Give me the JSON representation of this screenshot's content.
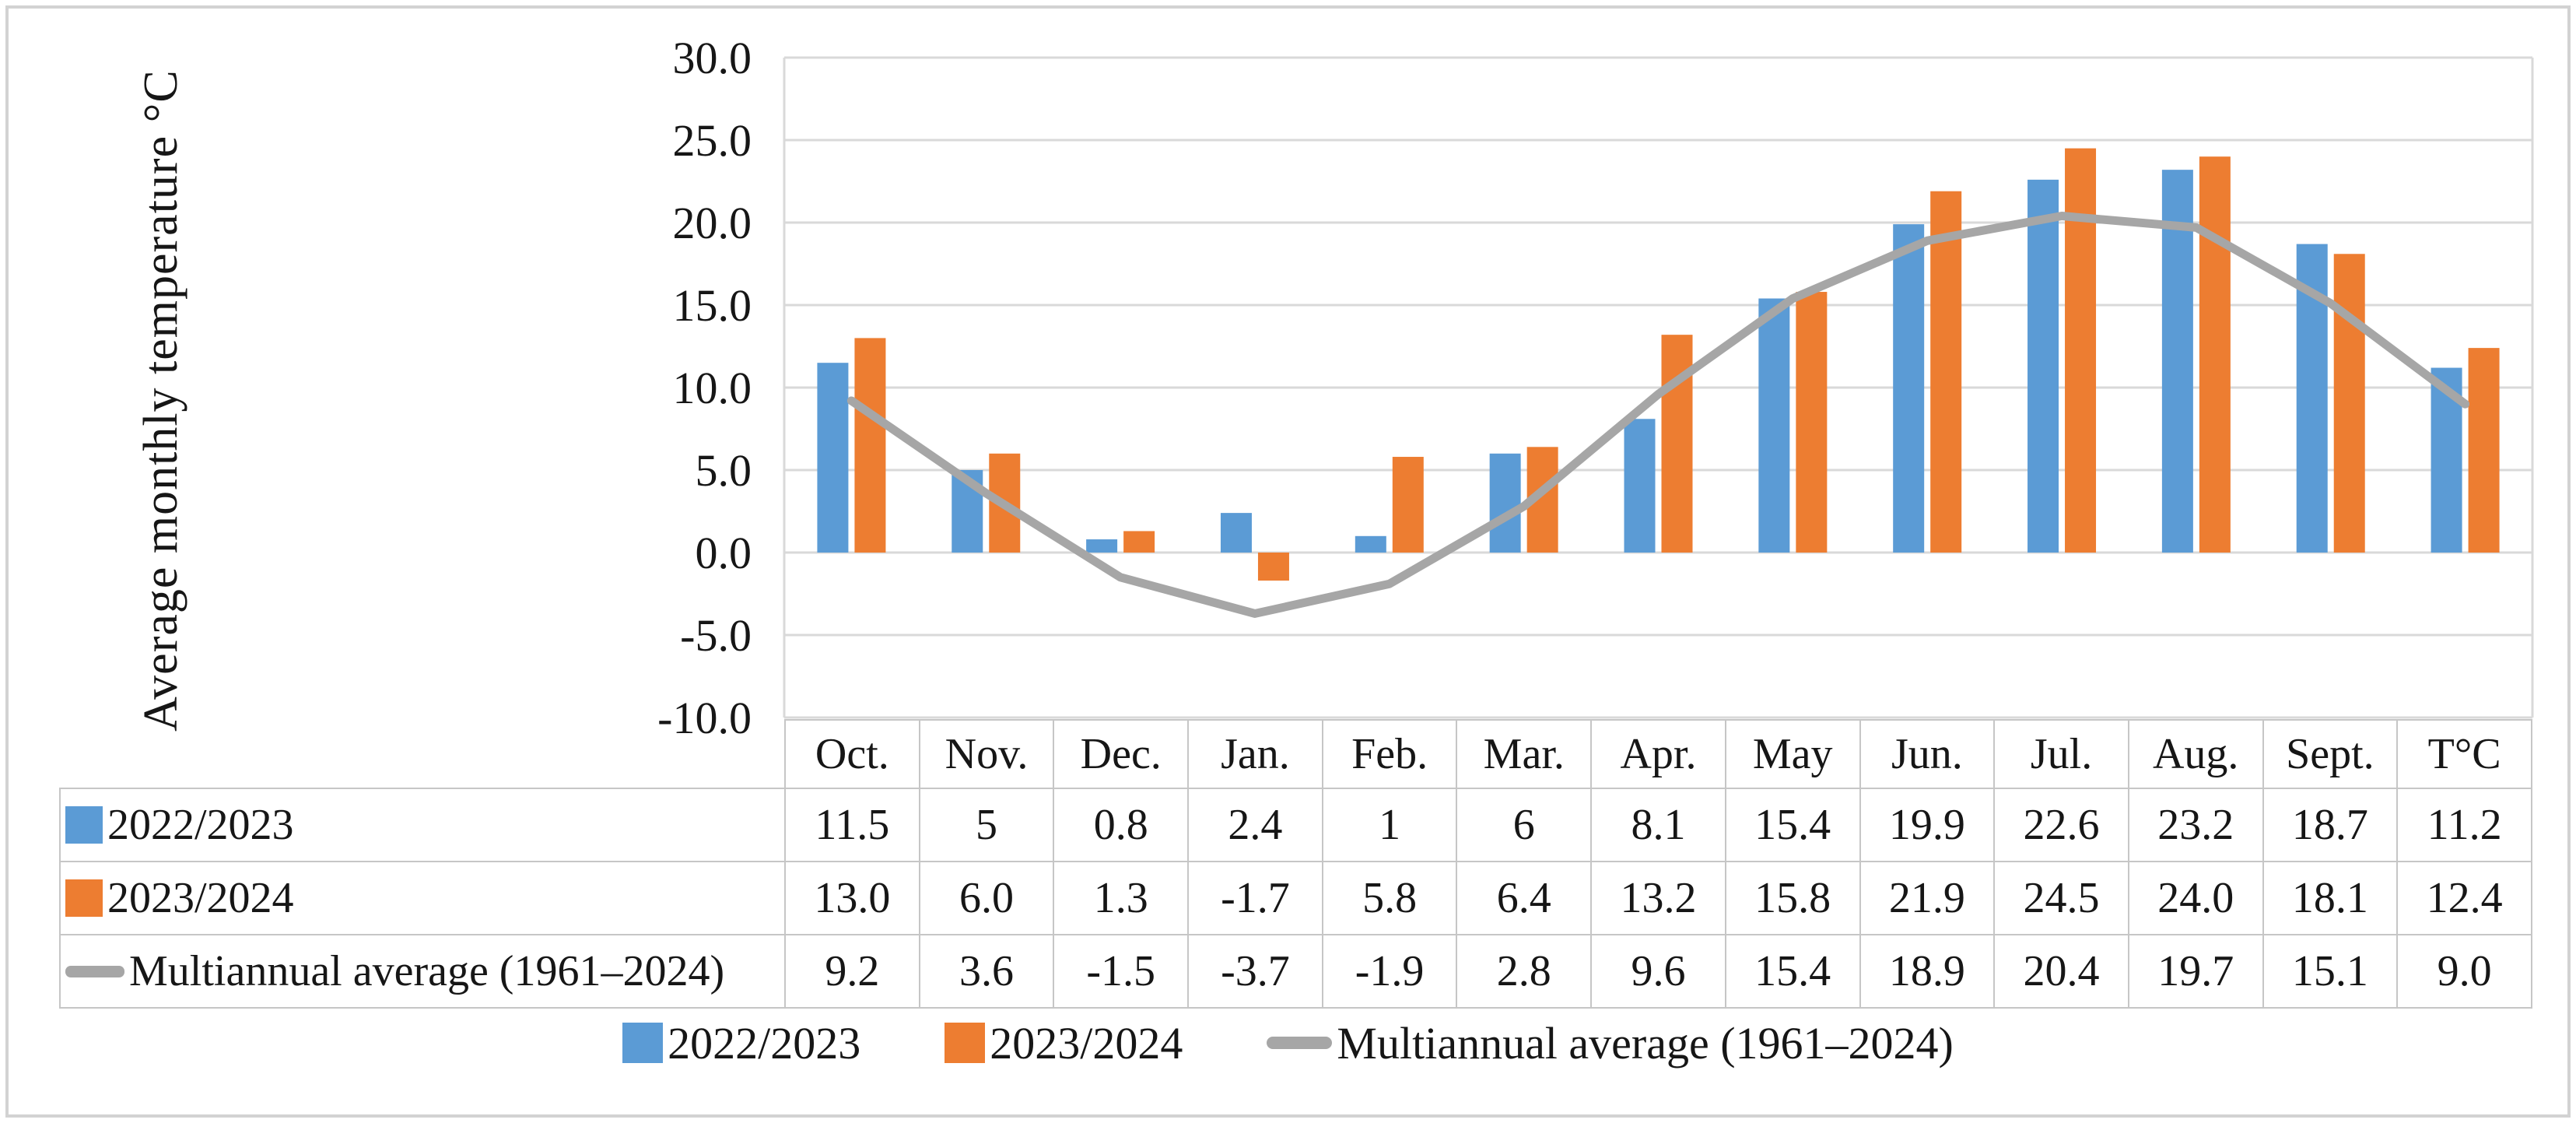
{
  "figure": {
    "y_axis_title": "Average monthly temperature °C"
  },
  "chart_data": {
    "type": "bar+line",
    "categories": [
      "Oct.",
      "Nov.",
      "Dec.",
      "Jan.",
      "Feb.",
      "Mar.",
      "Apr.",
      "May",
      "Jun.",
      "Jul.",
      "Aug.",
      "Sept.",
      "T°C"
    ],
    "series": [
      {
        "name": "2022/2023",
        "type": "bar",
        "color": "#5B9BD5",
        "values": [
          11.5,
          5,
          0.8,
          2.4,
          1,
          6,
          8.1,
          15.4,
          19.9,
          22.6,
          23.2,
          18.7,
          11.2
        ]
      },
      {
        "name": "2023/2024",
        "type": "bar",
        "color": "#ED7D31",
        "values": [
          13.0,
          6.0,
          1.3,
          -1.7,
          5.8,
          6.4,
          13.2,
          15.8,
          21.9,
          24.5,
          24.0,
          18.1,
          12.4
        ]
      },
      {
        "name": "Multiannual average (1961–2024)",
        "type": "line",
        "color": "#A6A6A6",
        "values": [
          9.2,
          3.6,
          -1.5,
          -3.7,
          -1.9,
          2.8,
          9.6,
          15.4,
          18.9,
          20.4,
          19.7,
          15.1,
          9.0
        ]
      }
    ],
    "title": "",
    "xlabel": "",
    "ylabel": "Average monthly temperature °C",
    "ylim": [
      -10,
      30
    ],
    "ytick_step": 5,
    "ytick_labels": [
      "30.0",
      "25.0",
      "20.0",
      "15.0",
      "10.0",
      "5.0",
      "0.0",
      "-5.0",
      "-10.0"
    ],
    "grid": true,
    "gridline_color": "#D9D9D9",
    "legend_position": "bottom"
  },
  "table": {
    "headers": [
      "Oct.",
      "Nov.",
      "Dec.",
      "Jan.",
      "Feb.",
      "Mar.",
      "Apr.",
      "May",
      "Jun.",
      "Jul.",
      "Aug.",
      "Sept.",
      "T°C"
    ],
    "rows": [
      {
        "label": "2022/2023",
        "swatch": "square",
        "color": "#5B9BD5",
        "values": [
          "11.5",
          "5",
          "0.8",
          "2.4",
          "1",
          "6",
          "8.1",
          "15.4",
          "19.9",
          "22.6",
          "23.2",
          "18.7",
          "11.2"
        ]
      },
      {
        "label": "2023/2024",
        "swatch": "square",
        "color": "#ED7D31",
        "values": [
          "13.0",
          "6.0",
          "1.3",
          "-1.7",
          "5.8",
          "6.4",
          "13.2",
          "15.8",
          "21.9",
          "24.5",
          "24.0",
          "18.1",
          "12.4"
        ]
      },
      {
        "label": "Multiannual average (1961–2024)",
        "swatch": "line",
        "color": "#A6A6A6",
        "values": [
          "9.2",
          "3.6",
          "-1.5",
          "-3.7",
          "-1.9",
          "2.8",
          "9.6",
          "15.4",
          "18.9",
          "20.4",
          "19.7",
          "15.1",
          "9.0"
        ]
      }
    ]
  },
  "legend": {
    "items": [
      {
        "label": "2022/2023",
        "swatch": "square",
        "color": "#5B9BD5"
      },
      {
        "label": "2023/2024",
        "swatch": "square",
        "color": "#ED7D31"
      },
      {
        "label": "Multiannual average (1961–2024)",
        "swatch": "line",
        "color": "#A6A6A6"
      }
    ]
  },
  "colors": {
    "bar_2022_2023": "#5B9BD5",
    "bar_2023_2024": "#ED7D31",
    "average_line": "#A6A6A6",
    "gridline": "#D9D9D9",
    "table_border": "#C6C6C6",
    "frame_border": "#D2D2D2",
    "text": "#161616"
  }
}
